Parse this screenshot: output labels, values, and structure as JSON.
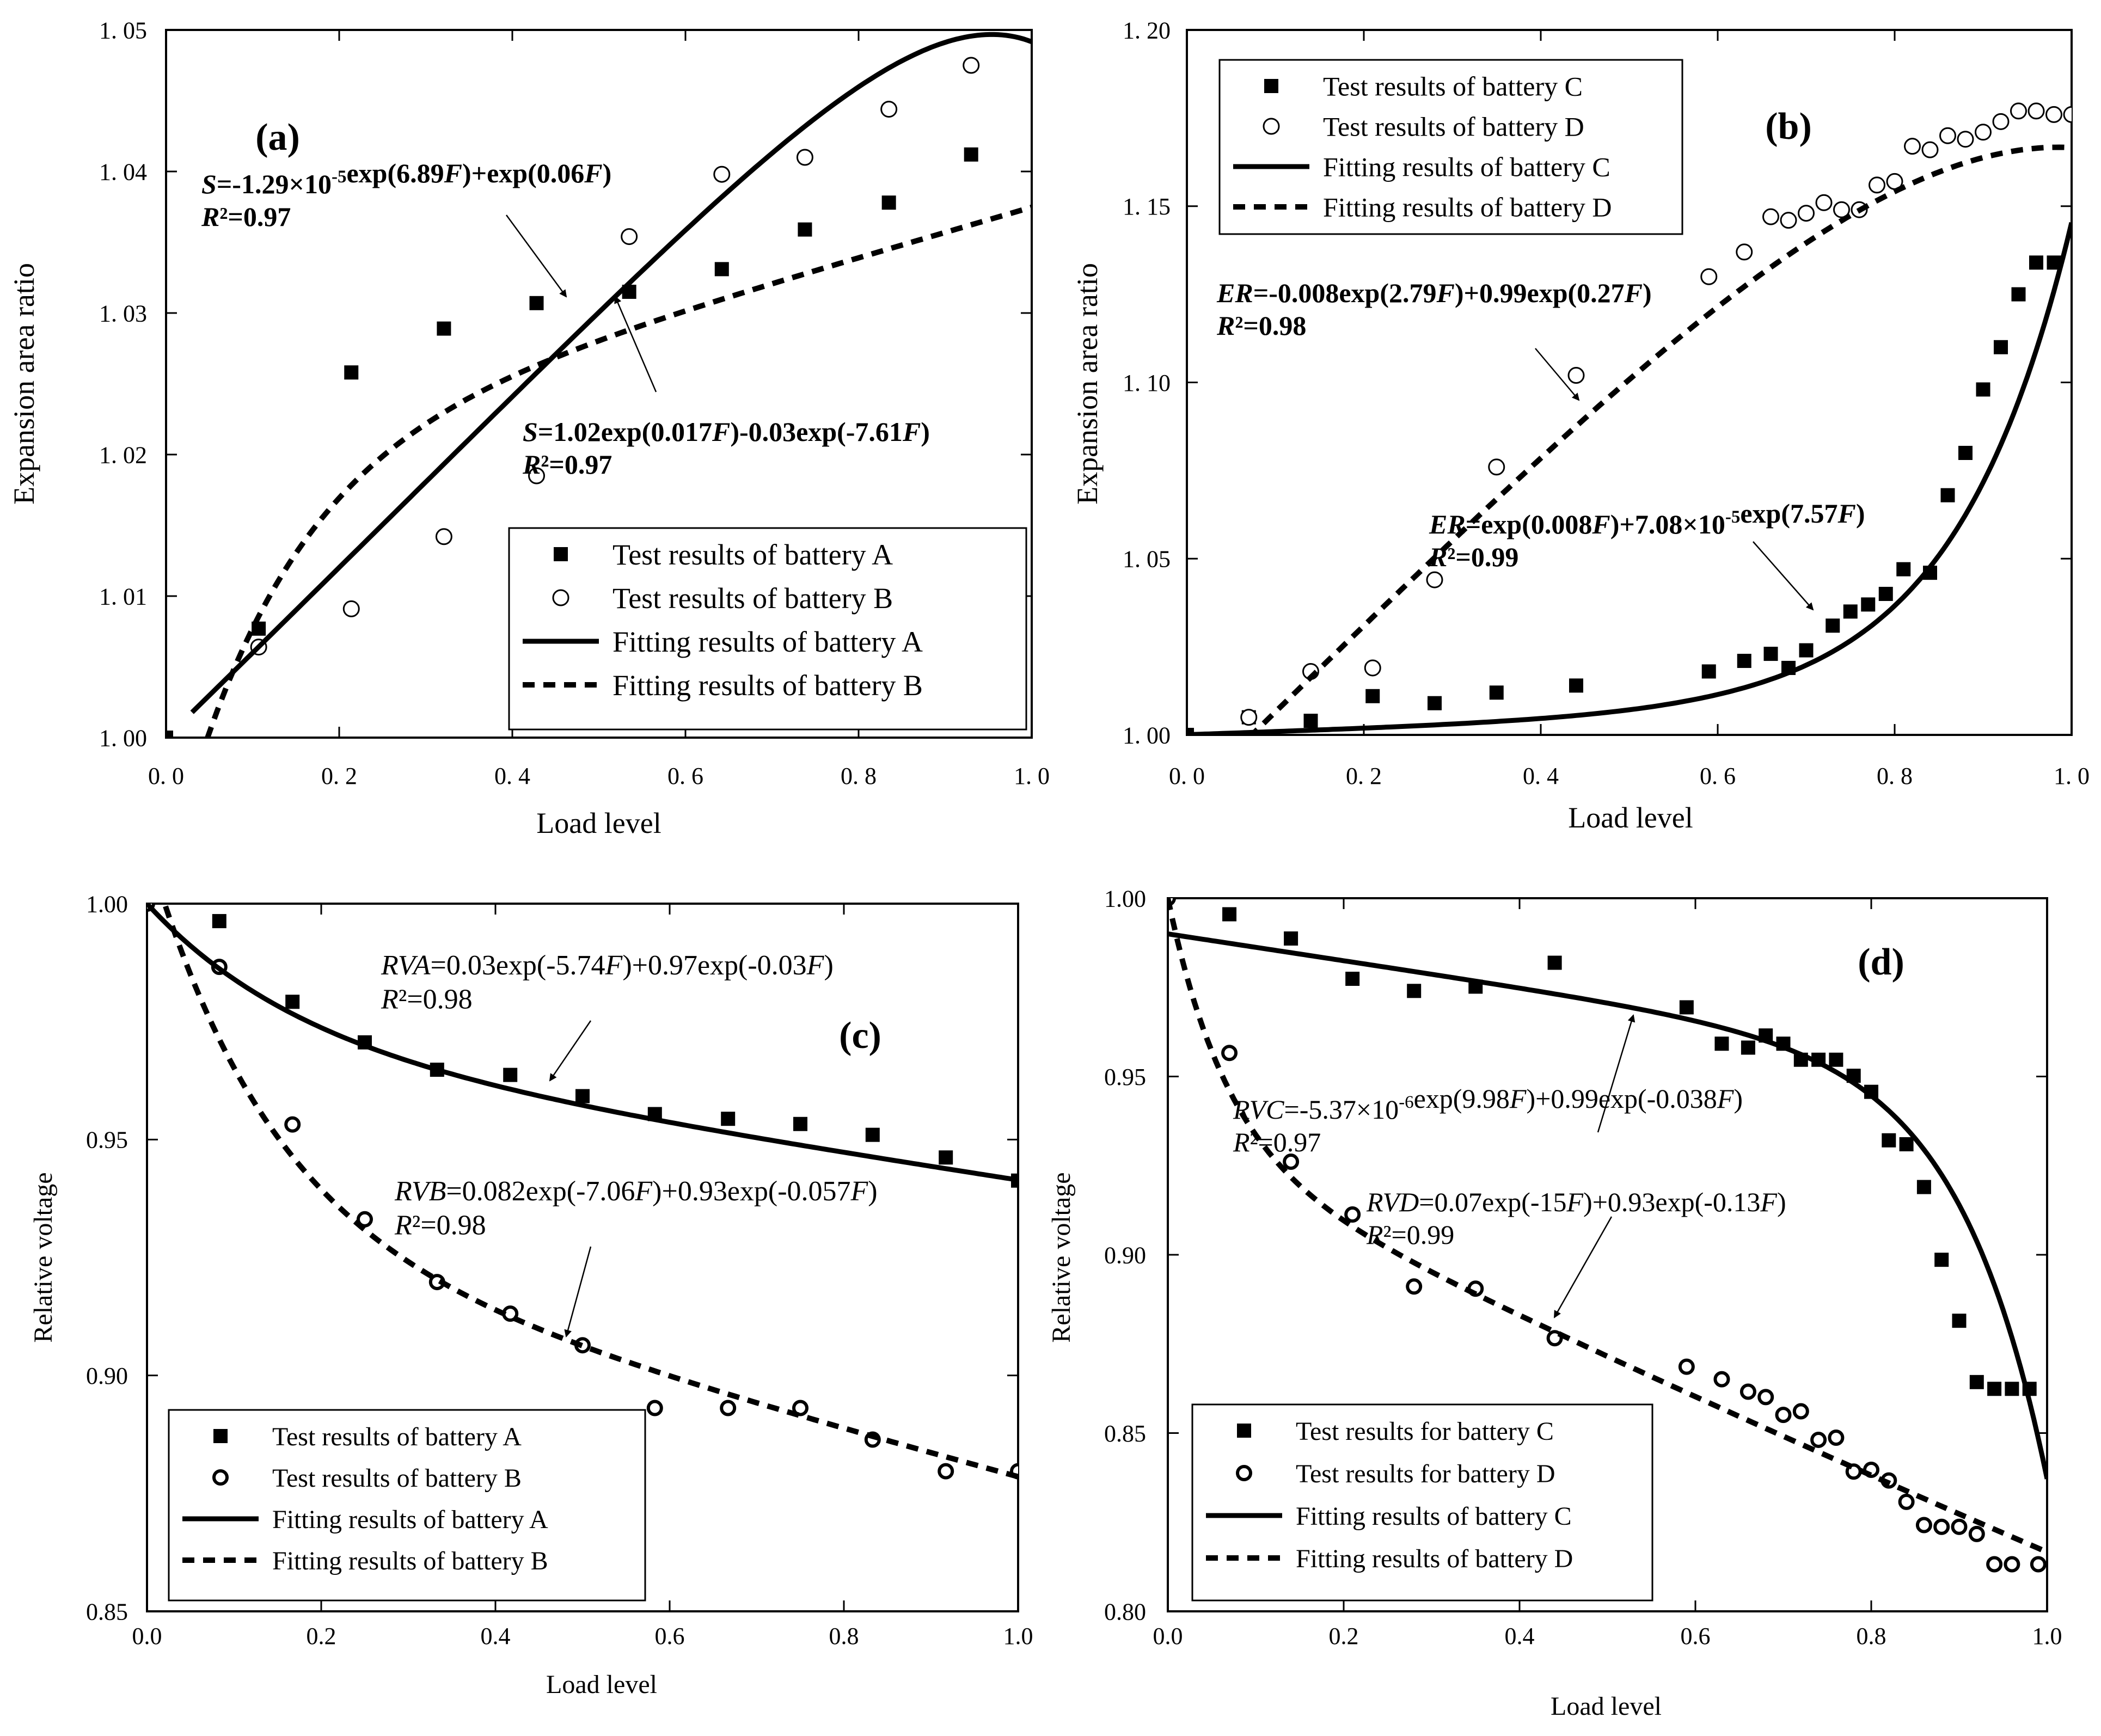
{
  "chart_data": [
    {
      "panel": "(a)",
      "type": "scatter",
      "xlabel": "Load level",
      "ylabel": "Expansion area ratio",
      "xlim": [
        0,
        1
      ],
      "ylim": [
        1.0,
        1.05
      ],
      "xticks": [
        0,
        0.2,
        0.4,
        0.6,
        0.8,
        1.0
      ],
      "xticklabels": [
        "0. 0",
        "0. 2",
        "0. 4",
        "0. 6",
        "0. 8",
        "1. 0"
      ],
      "yticks": [
        1.0,
        1.01,
        1.02,
        1.03,
        1.04,
        1.05
      ],
      "yticklabels": [
        "1. 00",
        "1. 01",
        "1. 02",
        "1. 03",
        "1. 04",
        "1. 05"
      ],
      "series": [
        {
          "name": "Test results of battery A",
          "marker": "square",
          "x": [
            0.0,
            0.107,
            0.214,
            0.321,
            0.428,
            0.535,
            0.642,
            0.738,
            0.835,
            0.93
          ],
          "y": [
            1.0,
            1.0077,
            1.0258,
            1.0289,
            1.0307,
            1.0315,
            1.0331,
            1.0359,
            1.0378,
            1.0412
          ]
        },
        {
          "name": "Test results of battery B",
          "marker": "circle",
          "x": [
            0.107,
            0.214,
            0.321,
            0.428,
            0.535,
            0.642,
            0.738,
            0.835,
            0.93
          ],
          "y": [
            1.0064,
            1.0091,
            1.0142,
            1.0185,
            1.0354,
            1.0398,
            1.041,
            1.0444,
            1.0475
          ]
        },
        {
          "name": "Fitting results of battery A",
          "line": "solid",
          "fit": {
            "model": "S",
            "a": -1.29e-05,
            "b": 6.89,
            "c": 1.0,
            "d": 0.06
          },
          "x_range": [
            0.03,
            1.0
          ]
        },
        {
          "name": "Fitting results of battery B",
          "line": "dashed",
          "fit": {
            "model": "S",
            "a": 1.02,
            "b": 0.017,
            "c": -0.03,
            "d": -7.61
          },
          "x_range": [
            0.04,
            1.0
          ]
        }
      ],
      "annotations": [
        {
          "line1": "S=-1.29×10⁻⁵exp(6.89F)+exp(0.06F)",
          "line2": "R²=0.97"
        },
        {
          "line1": "S=1.02exp(0.017F)-0.03exp(-7.61F)",
          "line2": "R²=0.97"
        }
      ],
      "legend": "bottom-right"
    },
    {
      "panel": "(b)",
      "type": "scatter",
      "xlabel": "Load level",
      "ylabel": "Expansion area ratio",
      "xlim": [
        0,
        1
      ],
      "ylim": [
        1.0,
        1.2
      ],
      "xticks": [
        0,
        0.2,
        0.4,
        0.6,
        0.8,
        1.0
      ],
      "xticklabels": [
        "0. 0",
        "0. 2",
        "0. 4",
        "0. 6",
        "0. 8",
        "1. 0"
      ],
      "yticks": [
        1.0,
        1.05,
        1.1,
        1.15,
        1.2
      ],
      "yticklabels": [
        "1. 00",
        "1. 05",
        "1. 10",
        "1. 15",
        "1. 20"
      ],
      "series": [
        {
          "name": "Test results of battery C",
          "marker": "square",
          "x": [
            0.0,
            0.07,
            0.14,
            0.21,
            0.28,
            0.35,
            0.44,
            0.59,
            0.63,
            0.66,
            0.68,
            0.7,
            0.73,
            0.75,
            0.77,
            0.79,
            0.81,
            0.84,
            0.86,
            0.88,
            0.9,
            0.92,
            0.94,
            0.96,
            0.98
          ],
          "y": [
            1.0,
            1.005,
            1.004,
            1.011,
            1.009,
            1.012,
            1.014,
            1.018,
            1.021,
            1.023,
            1.019,
            1.024,
            1.031,
            1.035,
            1.037,
            1.04,
            1.047,
            1.046,
            1.068,
            1.08,
            1.098,
            1.11,
            1.125,
            1.134,
            1.134
          ]
        },
        {
          "name": "Test results of battery D",
          "marker": "circle",
          "x": [
            0.07,
            0.14,
            0.21,
            0.28,
            0.35,
            0.44,
            0.59,
            0.63,
            0.66,
            0.68,
            0.7,
            0.72,
            0.74,
            0.76,
            0.78,
            0.8,
            0.82,
            0.84,
            0.86,
            0.88,
            0.9,
            0.92,
            0.94,
            0.96,
            0.98,
            1.0
          ],
          "y": [
            1.005,
            1.018,
            1.019,
            1.044,
            1.076,
            1.102,
            1.13,
            1.137,
            1.147,
            1.146,
            1.148,
            1.151,
            1.149,
            1.149,
            1.156,
            1.157,
            1.167,
            1.166,
            1.17,
            1.169,
            1.171,
            1.174,
            1.177,
            1.177,
            1.176,
            1.176
          ]
        },
        {
          "name": "Fitting results of battery C",
          "line": "solid",
          "fit": {
            "model": "ER",
            "a": 1.0,
            "b": 0.008,
            "c": 7.08e-05,
            "d": 7.57
          },
          "x_range": [
            0.0,
            1.0
          ]
        },
        {
          "name": "Fitting results of battery D",
          "line": "dashed",
          "fit": {
            "model": "ER",
            "a": -0.008,
            "b": 2.79,
            "c": 0.99,
            "d": 0.27
          },
          "x_range": [
            0.07,
            1.0
          ]
        }
      ],
      "annotations": [
        {
          "line1": "ER=-0.008exp(2.79F)+0.99exp(0.27F)",
          "line2": "R²=0.98"
        },
        {
          "line1": "ER=exp(0.008F)+7.08×10⁻⁵exp(7.57F)",
          "line2": "R²=0.99"
        }
      ],
      "legend": "top-left"
    },
    {
      "panel": "(c)",
      "type": "scatter",
      "xlabel": "Load level",
      "ylabel": "Relative voltage",
      "xlim": [
        0,
        1
      ],
      "ylim": [
        0.85,
        1.0
      ],
      "xticks": [
        0,
        0.2,
        0.4,
        0.6,
        0.8,
        1.0
      ],
      "xticklabels": [
        "0.0",
        "0.2",
        "0.4",
        "0.6",
        "0.8",
        "1.0"
      ],
      "yticks": [
        0.85,
        0.9,
        0.95,
        1.0
      ],
      "yticklabels": [
        "0.85",
        "0.90",
        "0.95",
        "1.00"
      ],
      "series": [
        {
          "name": "Test results of battery A",
          "marker": "square",
          "x": [
            0.0,
            0.083,
            0.167,
            0.25,
            0.333,
            0.417,
            0.5,
            0.583,
            0.667,
            0.75,
            0.833,
            0.917,
            1.0
          ],
          "y": [
            1.0,
            0.9963,
            0.9792,
            0.9706,
            0.9648,
            0.9637,
            0.9592,
            0.9554,
            0.9544,
            0.9533,
            0.951,
            0.9462,
            0.9413
          ]
        },
        {
          "name": "Test results of battery B",
          "marker": "circle-bold",
          "x": [
            0.0,
            0.083,
            0.167,
            0.25,
            0.333,
            0.417,
            0.5,
            0.583,
            0.667,
            0.75,
            0.833,
            0.917,
            1.0
          ],
          "y": [
            1.0,
            0.9866,
            0.9532,
            0.9331,
            0.9198,
            0.9131,
            0.9064,
            0.8931,
            0.8931,
            0.8931,
            0.8864,
            0.8797,
            0.8797
          ]
        },
        {
          "name": "Fitting results of battery A",
          "line": "solid",
          "fit": {
            "model": "RV",
            "a": 0.03,
            "b": -5.74,
            "c": 0.97,
            "d": -0.03
          },
          "x_range": [
            0.0,
            1.0
          ]
        },
        {
          "name": "Fitting results of battery B",
          "line": "dashed",
          "fit": {
            "model": "RV",
            "a": 0.082,
            "b": -7.06,
            "c": 0.93,
            "d": -0.057
          },
          "x_range": [
            0.0,
            1.0
          ]
        }
      ],
      "annotations": [
        {
          "line1": "RVA=0.03exp(-5.74F)+0.97exp(-0.03F)",
          "line2": "R²=0.98"
        },
        {
          "line1": "RVB=0.082exp(-7.06F)+0.93exp(-0.057F)",
          "line2": "R²=0.98"
        }
      ],
      "legend": "bottom-left"
    },
    {
      "panel": "(d)",
      "type": "scatter",
      "xlabel": "Load level",
      "ylabel": "Relative voltage",
      "xlim": [
        0,
        1
      ],
      "ylim": [
        0.8,
        1.0
      ],
      "xticks": [
        0,
        0.2,
        0.4,
        0.6,
        0.8,
        1.0
      ],
      "xticklabels": [
        "0.0",
        "0.2",
        "0.4",
        "0.6",
        "0.8",
        "1.0"
      ],
      "yticks": [
        0.8,
        0.85,
        0.9,
        0.95,
        1.0
      ],
      "yticklabels": [
        "0.80",
        "0.85",
        "0.90",
        "0.95",
        "1.00"
      ],
      "series": [
        {
          "name": "Test results for battery C",
          "marker": "square",
          "x": [
            0.07,
            0.14,
            0.21,
            0.28,
            0.35,
            0.44,
            0.59,
            0.63,
            0.66,
            0.68,
            0.7,
            0.72,
            0.74,
            0.76,
            0.78,
            0.8,
            0.82,
            0.84,
            0.86,
            0.88,
            0.9,
            0.92,
            0.94,
            0.96,
            0.98
          ],
          "y": [
            0.9955,
            0.9887,
            0.9774,
            0.974,
            0.9752,
            0.9819,
            0.9694,
            0.9592,
            0.9581,
            0.9615,
            0.9592,
            0.9547,
            0.9547,
            0.9547,
            0.9502,
            0.9457,
            0.9321,
            0.931,
            0.919,
            0.8986,
            0.8815,
            0.8643,
            0.8624,
            0.8624,
            0.8624
          ]
        },
        {
          "name": "Test results for battery D",
          "marker": "circle-bold",
          "x": [
            0.0,
            0.07,
            0.14,
            0.21,
            0.28,
            0.35,
            0.44,
            0.59,
            0.63,
            0.66,
            0.68,
            0.7,
            0.72,
            0.74,
            0.76,
            0.78,
            0.8,
            0.82,
            0.84,
            0.86,
            0.88,
            0.9,
            0.92,
            0.94,
            0.96,
            0.99
          ],
          "y": [
            1.0,
            0.9566,
            0.9261,
            0.9113,
            0.8911,
            0.8905,
            0.8766,
            0.8686,
            0.8651,
            0.8616,
            0.8601,
            0.8551,
            0.8561,
            0.8481,
            0.8487,
            0.8392,
            0.8397,
            0.8367,
            0.8307,
            0.8242,
            0.8237,
            0.8237,
            0.8217,
            0.8132,
            0.8132,
            0.8132
          ]
        },
        {
          "name": "Fitting results of battery C",
          "line": "solid",
          "fit": {
            "model": "RV",
            "a": -5.37e-06,
            "b": 9.98,
            "c": 0.99,
            "d": -0.038
          },
          "x_range": [
            0.0,
            1.0
          ]
        },
        {
          "name": "Fitting results of battery D",
          "line": "dashed",
          "fit": {
            "model": "RV",
            "a": 0.07,
            "b": -15.0,
            "c": 0.93,
            "d": -0.13
          },
          "x_range": [
            0.0,
            1.0
          ]
        }
      ],
      "annotations": [
        {
          "line1": "RVC=-5.37×10⁻⁶exp(9.98F)+0.99exp(-0.038F)",
          "line2": "R²=0.97"
        },
        {
          "line1": "RVD=0.07exp(-15F)+0.93exp(-0.13F)",
          "line2": "R²=0.99"
        }
      ],
      "legend": "bottom-left"
    }
  ]
}
